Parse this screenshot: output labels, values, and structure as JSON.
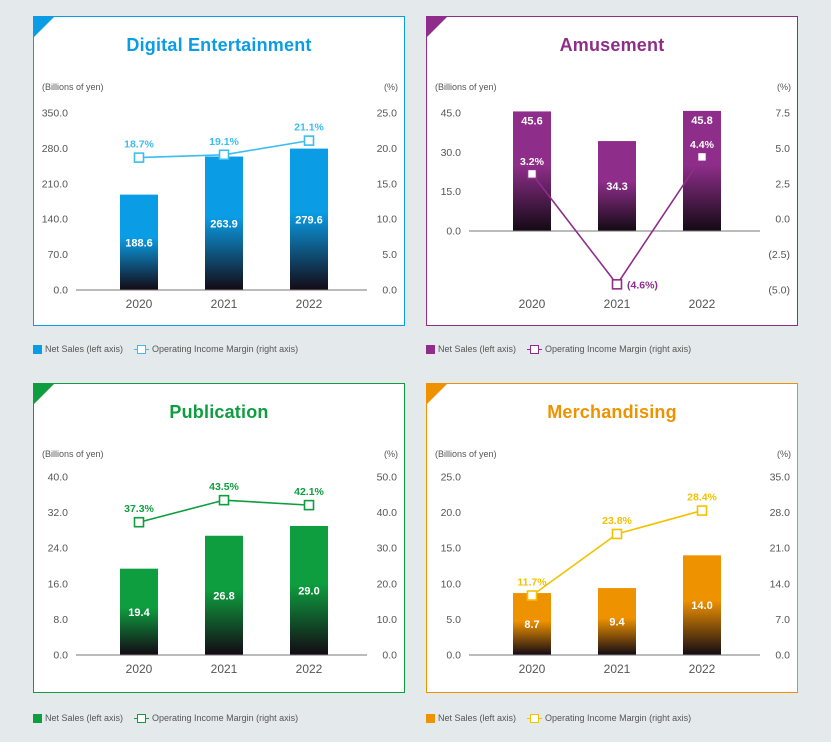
{
  "legend": {
    "net_sales": "Net Sales (left axis)",
    "margin": "Operating Income Margin (right axis)"
  },
  "chart_data": [
    {
      "id": "digital",
      "type": "bar",
      "title": "Digital Entertainment",
      "color": "#0a9de5",
      "accent": "#3cbdf0",
      "left_unit": "(Billions of yen)",
      "right_unit": "(%)",
      "categories": [
        "2020",
        "2021",
        "2022"
      ],
      "series": [
        {
          "name": "Net Sales (left axis)",
          "axis": "left",
          "values": [
            188.6,
            263.9,
            279.6
          ],
          "labels": [
            "188.6",
            "263.9",
            "279.6"
          ]
        },
        {
          "name": "Operating Income Margin (right axis)",
          "axis": "right",
          "type": "line",
          "values": [
            18.7,
            19.1,
            21.1
          ],
          "labels": [
            "18.7%",
            "19.1%",
            "21.1%"
          ]
        }
      ],
      "ylim_left": [
        0,
        350
      ],
      "ylim_right": [
        0,
        25
      ],
      "left_ticks": [
        {
          "v": 0,
          "t": "0.0"
        },
        {
          "v": 70,
          "t": "70.0"
        },
        {
          "v": 140,
          "t": "140.0"
        },
        {
          "v": 210,
          "t": "210.0"
        },
        {
          "v": 280,
          "t": "280.0"
        },
        {
          "v": 350,
          "t": "350.0"
        }
      ],
      "right_ticks": [
        {
          "v": 0,
          "t": "0.0"
        },
        {
          "v": 5,
          "t": "5.0"
        },
        {
          "v": 10,
          "t": "10.0"
        },
        {
          "v": 15,
          "t": "15.0"
        },
        {
          "v": 20,
          "t": "20.0"
        },
        {
          "v": 25,
          "t": "25.0"
        }
      ],
      "baseline_left": 0
    },
    {
      "id": "amusement",
      "type": "bar",
      "title": "Amusement",
      "color": "#8e2e8a",
      "accent": "#8e2e8a",
      "left_unit": "(Billions of yen)",
      "right_unit": "(%)",
      "categories": [
        "2020",
        "2021",
        "2022"
      ],
      "series": [
        {
          "name": "Net Sales (left axis)",
          "axis": "left",
          "values": [
            45.6,
            34.3,
            45.8
          ],
          "labels": [
            "45.6",
            "34.3",
            "45.8"
          ]
        },
        {
          "name": "Operating Income Margin (right axis)",
          "axis": "right",
          "type": "line",
          "values": [
            3.2,
            -4.6,
            4.4
          ],
          "labels": [
            "3.2%",
            "(4.6%)",
            "4.4%"
          ]
        }
      ],
      "ylim_left": [
        -22.5,
        45
      ],
      "ylim_right": [
        -5,
        7.5
      ],
      "left_ticks": [
        {
          "v": 0,
          "t": "0.0"
        },
        {
          "v": 15,
          "t": "15.0"
        },
        {
          "v": 30,
          "t": "30.0"
        },
        {
          "v": 45,
          "t": "45.0"
        }
      ],
      "right_ticks": [
        {
          "v": -5,
          "t": "(5.0)"
        },
        {
          "v": -2.5,
          "t": "(2.5)"
        },
        {
          "v": 0,
          "t": "0.0"
        },
        {
          "v": 2.5,
          "t": "2.5"
        },
        {
          "v": 5,
          "t": "5.0"
        },
        {
          "v": 7.5,
          "t": "7.5"
        }
      ],
      "baseline_left": 0
    },
    {
      "id": "publication",
      "type": "bar",
      "title": "Publication",
      "color": "#0e9e3f",
      "accent": "#0e9e3f",
      "left_unit": "(Billions of yen)",
      "right_unit": "(%)",
      "categories": [
        "2020",
        "2021",
        "2022"
      ],
      "series": [
        {
          "name": "Net Sales (left axis)",
          "axis": "left",
          "values": [
            19.4,
            26.8,
            29.0
          ],
          "labels": [
            "19.4",
            "26.8",
            "29.0"
          ]
        },
        {
          "name": "Operating Income Margin (right axis)",
          "axis": "right",
          "type": "line",
          "values": [
            37.3,
            43.5,
            42.1
          ],
          "labels": [
            "37.3%",
            "43.5%",
            "42.1%"
          ]
        }
      ],
      "ylim_left": [
        0,
        40
      ],
      "ylim_right": [
        0,
        50
      ],
      "left_ticks": [
        {
          "v": 0,
          "t": "0.0"
        },
        {
          "v": 8,
          "t": "8.0"
        },
        {
          "v": 16,
          "t": "16.0"
        },
        {
          "v": 24,
          "t": "24.0"
        },
        {
          "v": 32,
          "t": "32.0"
        },
        {
          "v": 40,
          "t": "40.0"
        }
      ],
      "right_ticks": [
        {
          "v": 0,
          "t": "0.0"
        },
        {
          "v": 10,
          "t": "10.0"
        },
        {
          "v": 20,
          "t": "20.0"
        },
        {
          "v": 30,
          "t": "30.0"
        },
        {
          "v": 40,
          "t": "40.0"
        },
        {
          "v": 50,
          "t": "50.0"
        }
      ],
      "baseline_left": 0
    },
    {
      "id": "merch",
      "type": "bar",
      "title": "Merchandising",
      "color": "#ef9200",
      "accent": "#f2c200",
      "left_unit": "(Billions of yen)",
      "right_unit": "(%)",
      "categories": [
        "2020",
        "2021",
        "2022"
      ],
      "series": [
        {
          "name": "Net Sales (left axis)",
          "axis": "left",
          "values": [
            8.7,
            9.4,
            14.0
          ],
          "labels": [
            "8.7",
            "9.4",
            "14.0"
          ]
        },
        {
          "name": "Operating Income Margin (right axis)",
          "axis": "right",
          "type": "line",
          "values": [
            11.7,
            23.8,
            28.4
          ],
          "labels": [
            "11.7%",
            "23.8%",
            "28.4%"
          ]
        }
      ],
      "ylim_left": [
        0,
        25
      ],
      "ylim_right": [
        0,
        35
      ],
      "left_ticks": [
        {
          "v": 0,
          "t": "0.0"
        },
        {
          "v": 5,
          "t": "5.0"
        },
        {
          "v": 10,
          "t": "10.0"
        },
        {
          "v": 15,
          "t": "15.0"
        },
        {
          "v": 20,
          "t": "20.0"
        },
        {
          "v": 25,
          "t": "25.0"
        }
      ],
      "right_ticks": [
        {
          "v": 0,
          "t": "0.0"
        },
        {
          "v": 7,
          "t": "7.0"
        },
        {
          "v": 14,
          "t": "14.0"
        },
        {
          "v": 21,
          "t": "21.0"
        },
        {
          "v": 28,
          "t": "28.0"
        },
        {
          "v": 35,
          "t": "35.0"
        }
      ],
      "baseline_left": 0
    }
  ]
}
